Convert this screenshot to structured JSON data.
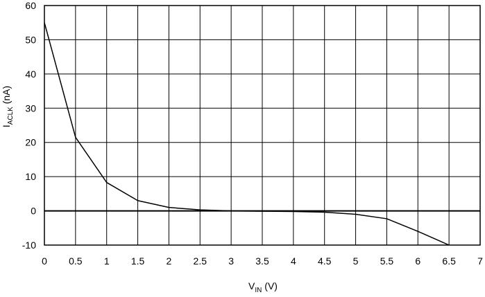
{
  "chart_data": {
    "type": "line",
    "title": "",
    "xlabel": {
      "main": "V",
      "sub": "IN",
      "unit": " (V)"
    },
    "ylabel": {
      "main": "I",
      "sub": "ACLK",
      "unit": " (nA)"
    },
    "xlim": [
      0,
      7
    ],
    "ylim": [
      -10,
      60
    ],
    "x_ticks": [
      "0",
      "0.5",
      "1",
      "1.5",
      "2",
      "2.5",
      "3",
      "3.5",
      "4",
      "4.5",
      "5",
      "5.5",
      "6",
      "6.5",
      "7"
    ],
    "y_ticks": [
      "-10",
      "0",
      "10",
      "20",
      "30",
      "40",
      "50",
      "60"
    ],
    "grid": true,
    "series": [
      {
        "x": [
          0,
          0.5,
          1,
          1.5,
          2,
          2.5,
          3,
          3.5,
          4,
          4.5,
          5,
          5.5,
          6,
          6.5
        ],
        "y": [
          55,
          21.5,
          8.3,
          3,
          1,
          0.3,
          0,
          -0.1,
          -0.2,
          -0.4,
          -1,
          -2.3,
          -6,
          -10
        ]
      }
    ]
  }
}
